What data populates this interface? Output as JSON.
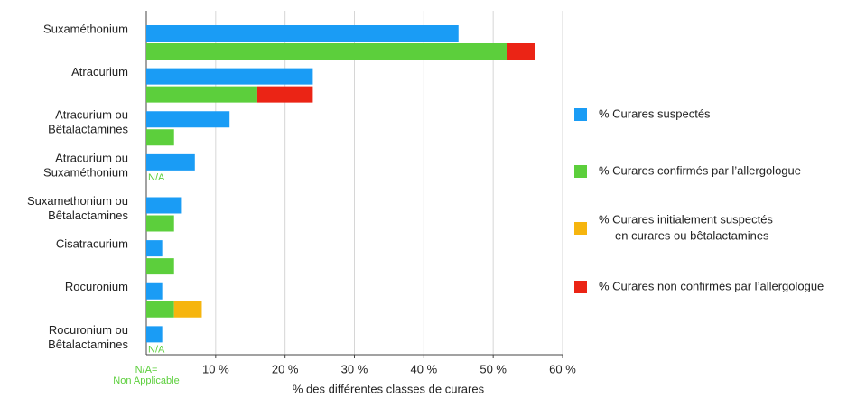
{
  "chart_data": {
    "type": "bar",
    "orientation": "horizontal",
    "categories": [
      [
        "Suxaméthonium"
      ],
      [
        "Atracurium"
      ],
      [
        "Atracurium ou",
        "Bêtalactamines"
      ],
      [
        "Atracurium ou",
        "Suxaméthonium"
      ],
      [
        "Suxamethonium ou",
        "Bêtalactamines"
      ],
      [
        "Cisatracurium"
      ],
      [
        "Rocuronium"
      ],
      [
        "Rocuronium ou",
        "Bêtalactamines"
      ]
    ],
    "series": [
      {
        "name": "% Curares suspectés",
        "color": "#1a9cf5",
        "values": [
          45,
          24,
          12,
          7,
          5,
          2.3,
          2.3,
          2.3
        ]
      },
      {
        "name": "% Curares confirmés par l’allergologue",
        "color": "#5ccf3c",
        "values": [
          52,
          16,
          4,
          null,
          4,
          4,
          4,
          null
        ]
      },
      {
        "name": [
          "% Curares initialement suspectés",
          "en curares ou bêtalactamines"
        ],
        "color": "#f6b50e",
        "values": [
          null,
          null,
          null,
          null,
          null,
          null,
          4,
          null
        ]
      },
      {
        "name": "% Curares non confirmés par l’allergologue",
        "color": "#eb2415",
        "values": [
          4,
          8,
          null,
          null,
          null,
          null,
          null,
          null
        ]
      }
    ],
    "xlim": [
      0,
      60
    ],
    "xticks": [
      {
        "value": 10,
        "label": "10 %"
      },
      {
        "value": 20,
        "label": "20 %"
      },
      {
        "value": 30,
        "label": "30 %"
      },
      {
        "value": 40,
        "label": "40 %"
      },
      {
        "value": 50,
        "label": "50 %"
      },
      {
        "value": 60,
        "label": "60 %"
      }
    ],
    "xlabel": "% des différentes classes de curares",
    "grid": true,
    "legend": "right",
    "na_label": "N/A",
    "footnote": [
      "N/A=",
      "Non Applicable"
    ]
  }
}
